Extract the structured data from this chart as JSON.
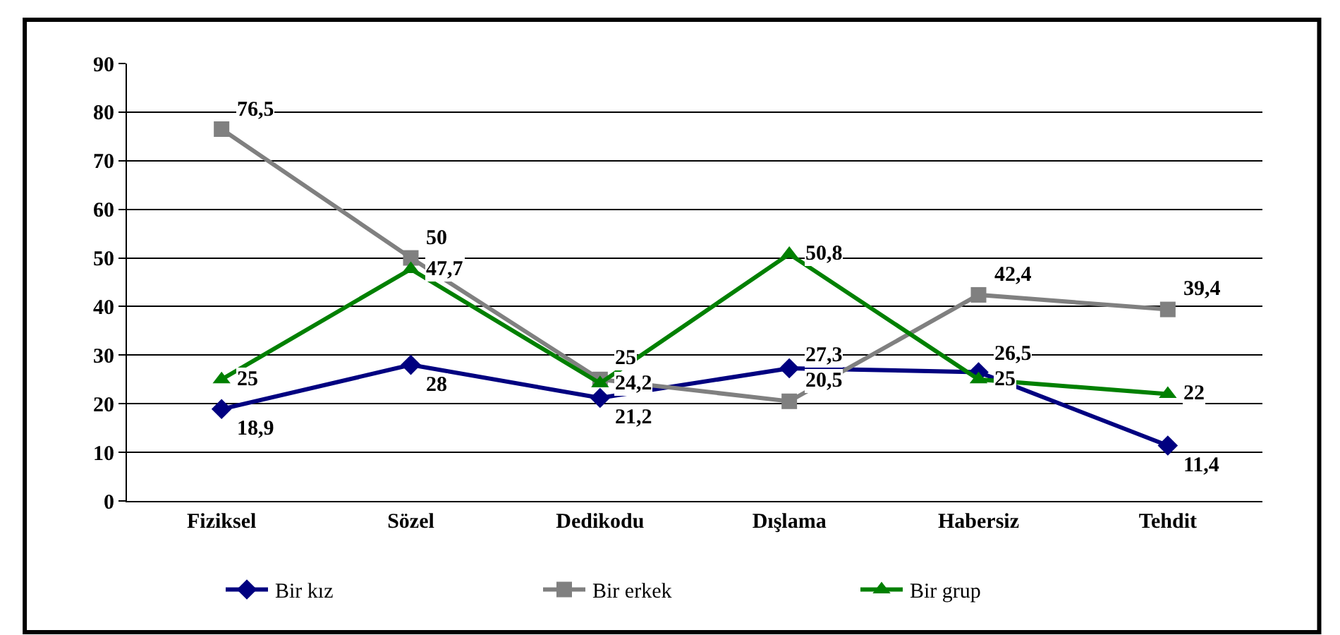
{
  "chart_data": {
    "type": "line",
    "categories": [
      "Fiziksel",
      "Sözel",
      "Dedikodu",
      "Dışlama",
      "Habersiz",
      "Tehdit"
    ],
    "series": [
      {
        "name": "Bir kız",
        "color": "#000080",
        "marker": "diamond",
        "values": [
          18.9,
          28,
          21.2,
          27.3,
          26.5,
          11.4
        ],
        "value_labels": [
          "18,9",
          "28",
          "21,2",
          "27,3",
          "26,5",
          "11,4"
        ]
      },
      {
        "name": "Bir erkek",
        "color": "#808080",
        "marker": "square",
        "values": [
          76.5,
          50,
          25,
          20.5,
          42.4,
          39.4
        ],
        "value_labels": [
          "76,5",
          "50",
          "25",
          "20,5",
          "42,4",
          "39,4"
        ]
      },
      {
        "name": "Bir grup",
        "color": "#008000",
        "marker": "triangle",
        "values": [
          25,
          47.7,
          24.2,
          50.8,
          25,
          22
        ],
        "value_labels": [
          "25",
          "47,7",
          "24,2",
          "50,8",
          "25",
          "22"
        ]
      }
    ],
    "ylim": [
      0,
      90
    ],
    "yticks": [
      0,
      10,
      20,
      30,
      40,
      50,
      60,
      70,
      80,
      90
    ],
    "grid": "y",
    "legend": "bottom",
    "line_style": "solid"
  }
}
